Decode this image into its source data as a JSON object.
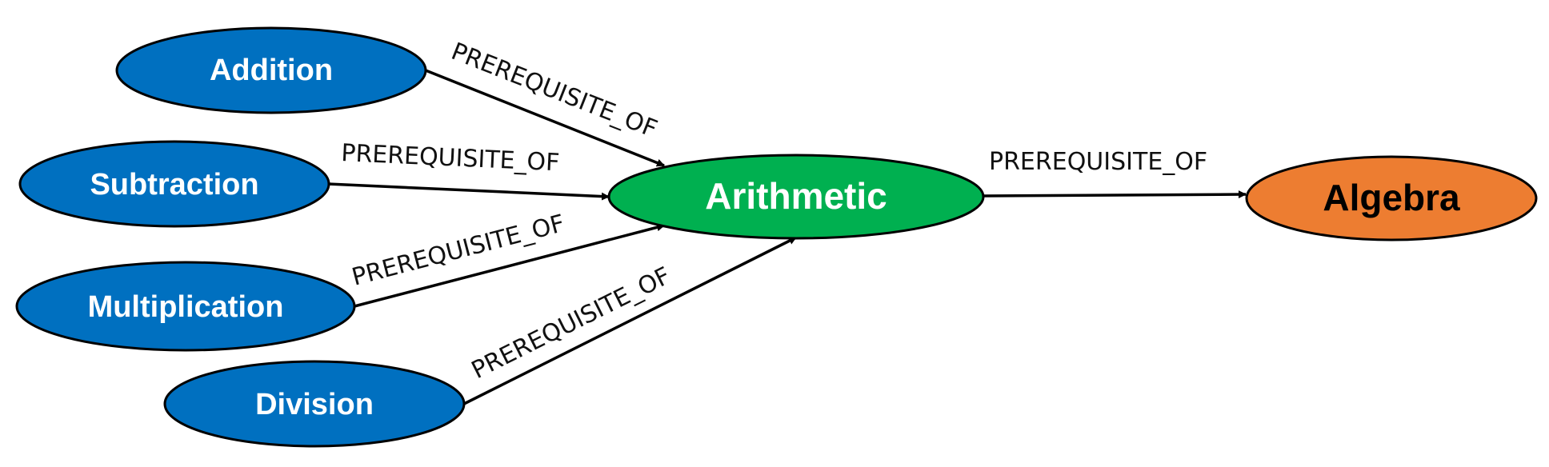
{
  "nodes": {
    "addition": {
      "label": "Addition",
      "fill": "#0070C0",
      "text_color": "#FFFFFF"
    },
    "subtraction": {
      "label": "Subtraction",
      "fill": "#0070C0",
      "text_color": "#FFFFFF"
    },
    "multiplication": {
      "label": "Multiplication",
      "fill": "#0070C0",
      "text_color": "#FFFFFF"
    },
    "division": {
      "label": "Division",
      "fill": "#0070C0",
      "text_color": "#FFFFFF"
    },
    "arithmetic": {
      "label": "Arithmetic",
      "fill": "#00B050",
      "text_color": "#FFFFFF"
    },
    "algebra": {
      "label": "Algebra",
      "fill": "#ED7D31",
      "text_color": "#000000"
    }
  },
  "edges": [
    {
      "from": "Addition",
      "to": "Arithmetic",
      "label": "PREREQUISITE_OF"
    },
    {
      "from": "Subtraction",
      "to": "Arithmetic",
      "label": "PREREQUISITE_OF"
    },
    {
      "from": "Multiplication",
      "to": "Arithmetic",
      "label": "PREREQUISITE_OF"
    },
    {
      "from": "Division",
      "to": "Arithmetic",
      "label": "PREREQUISITE_OF"
    },
    {
      "from": "Arithmetic",
      "to": "Algebra",
      "label": "PREREQUISITE_OF"
    }
  ]
}
